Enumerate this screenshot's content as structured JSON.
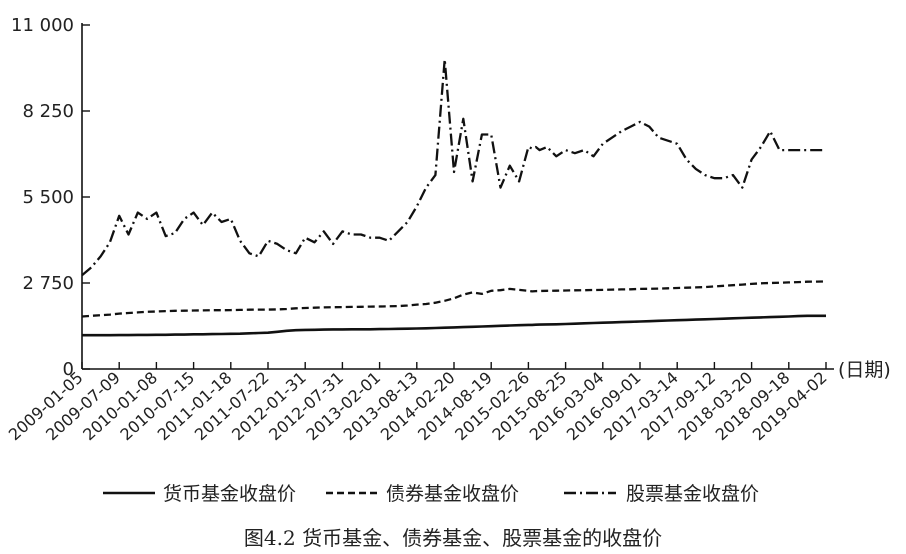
{
  "caption": "图4.2 货币基金、债券基金、股票基金的收盘价",
  "chart_data": {
    "type": "line",
    "xlabel": "(日期)",
    "ylabel": "",
    "ylim": [
      0,
      11000
    ],
    "yticks": [
      0,
      2750,
      5500,
      8250,
      11000
    ],
    "ytick_labels": [
      "0",
      "2 750",
      "5 500",
      "8 250",
      "11 000"
    ],
    "x_tick_labels": [
      "2009-01-05",
      "2009-07-09",
      "2010-01-08",
      "2010-07-15",
      "2011-01-18",
      "2011-07-22",
      "2012-01-31",
      "2012-07-31",
      "2013-02-01",
      "2013-08-13",
      "2014-02-20",
      "2014-08-19",
      "2015-02-26",
      "2015-08-25",
      "2016-03-04",
      "2016-09-01",
      "2017-03-14",
      "2017-09-12",
      "2018-03-20",
      "2018-09-18",
      "2019-04-02"
    ],
    "grid": false,
    "legend_position": "bottom",
    "x": [
      0,
      0.25,
      0.5,
      0.75,
      1,
      1.25,
      1.5,
      1.75,
      2,
      2.25,
      2.5,
      2.75,
      3,
      3.25,
      3.5,
      3.75,
      4,
      4.25,
      4.5,
      4.75,
      5,
      5.25,
      5.5,
      5.75,
      6,
      6.25,
      6.5,
      6.75,
      7,
      7.25,
      7.5,
      7.75,
      8,
      8.25,
      8.5,
      8.75,
      9,
      9.25,
      9.5,
      9.75,
      10,
      10.25,
      10.5,
      10.75,
      11,
      11.25,
      11.5,
      11.75,
      12,
      12.1,
      12.2,
      12.3,
      12.5,
      12.75,
      13,
      13.25,
      13.5,
      13.75,
      14,
      14.25,
      14.5,
      14.75,
      15,
      15.25,
      15.5,
      15.75,
      16,
      16.25,
      16.5,
      16.75,
      17,
      17.25,
      17.5,
      17.75,
      18,
      18.25,
      18.5,
      18.75,
      19,
      19.25,
      19.5,
      19.75,
      20
    ],
    "series": [
      {
        "name": "货币基金收盘价",
        "style": "solid",
        "color": "#111111",
        "values": [
          1080,
          1080,
          1080,
          1080,
          1085,
          1085,
          1090,
          1090,
          1095,
          1095,
          1100,
          1100,
          1110,
          1110,
          1115,
          1120,
          1125,
          1130,
          1140,
          1150,
          1160,
          1190,
          1220,
          1240,
          1250,
          1255,
          1260,
          1265,
          1265,
          1270,
          1270,
          1270,
          1275,
          1280,
          1285,
          1290,
          1295,
          1300,
          1310,
          1320,
          1330,
          1340,
          1350,
          1360,
          1370,
          1380,
          1390,
          1400,
          1410,
          1410,
          1415,
          1420,
          1425,
          1430,
          1440,
          1450,
          1460,
          1470,
          1480,
          1490,
          1500,
          1510,
          1520,
          1530,
          1540,
          1550,
          1560,
          1570,
          1580,
          1590,
          1600,
          1610,
          1620,
          1630,
          1640,
          1650,
          1660,
          1670,
          1680,
          1690,
          1700,
          1700,
          1700
        ]
      },
      {
        "name": "债券基金收盘价",
        "style": "dashed",
        "color": "#111111",
        "values": [
          1680,
          1700,
          1720,
          1740,
          1770,
          1790,
          1810,
          1830,
          1840,
          1850,
          1860,
          1865,
          1870,
          1875,
          1880,
          1880,
          1885,
          1890,
          1895,
          1900,
          1900,
          1905,
          1920,
          1940,
          1950,
          1960,
          1970,
          1975,
          1980,
          1985,
          1990,
          1995,
          2000,
          2005,
          2010,
          2030,
          2060,
          2080,
          2120,
          2180,
          2260,
          2380,
          2450,
          2400,
          2500,
          2520,
          2560,
          2530,
          2500,
          2480,
          2490,
          2495,
          2500,
          2505,
          2510,
          2515,
          2520,
          2525,
          2530,
          2540,
          2545,
          2550,
          2560,
          2565,
          2570,
          2580,
          2590,
          2600,
          2610,
          2620,
          2640,
          2660,
          2680,
          2700,
          2720,
          2740,
          2750,
          2760,
          2770,
          2780,
          2790,
          2795,
          2800
        ]
      },
      {
        "name": "股票基金收盘价",
        "style": "dashdot",
        "color": "#111111",
        "values": [
          3000,
          3250,
          3600,
          4050,
          4900,
          4300,
          5000,
          4800,
          5000,
          4250,
          4350,
          4800,
          5000,
          4600,
          5000,
          4700,
          4800,
          4100,
          3700,
          3600,
          4100,
          4000,
          3800,
          3700,
          4200,
          4050,
          4400,
          4000,
          4400,
          4300,
          4300,
          4200,
          4200,
          4100,
          4400,
          4700,
          5200,
          5800,
          6200,
          9900,
          6300,
          8000,
          6000,
          7500,
          7500,
          5800,
          6500,
          6000,
          7100,
          7050,
          7100,
          7000,
          7100,
          6800,
          7000,
          6900,
          7000,
          6800,
          7200,
          7400,
          7600,
          7750,
          7900,
          7750,
          7400,
          7300,
          7200,
          6700,
          6400,
          6200,
          6100,
          6100,
          6200,
          5800,
          6700,
          7100,
          7600,
          7000,
          7000,
          7000,
          7000,
          7000,
          7000
        ]
      }
    ]
  }
}
